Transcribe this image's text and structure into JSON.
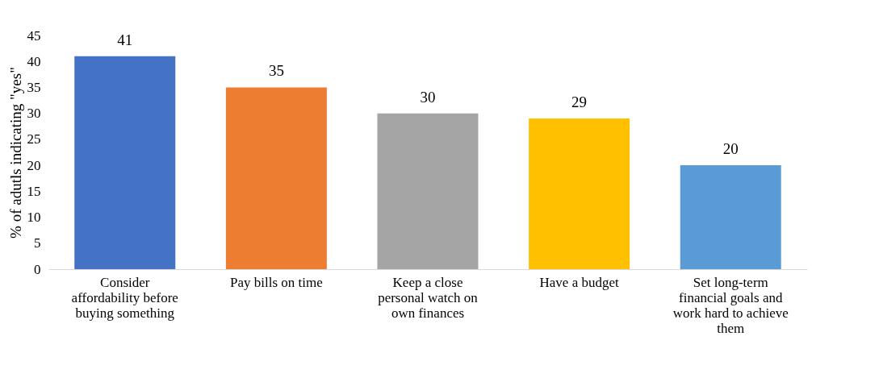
{
  "chart_data": {
    "type": "bar",
    "categories": [
      "Consider affordability before buying something",
      "Pay bills on time",
      "Keep a close personal watch on own finances",
      "Have a budget",
      "Set long-term financial goals and work hard to achieve them"
    ],
    "values": [
      41,
      35,
      30,
      29,
      20
    ],
    "colors": [
      "#4472c4",
      "#ed7d31",
      "#a5a5a5",
      "#ffc000",
      "#5b9bd5"
    ],
    "ylabel": "% of adutls indicating  \"yes\"",
    "ylim": [
      0,
      45
    ],
    "yticks": [
      0,
      5,
      10,
      15,
      20,
      25,
      30,
      35,
      40,
      45
    ],
    "grid": false,
    "data_labels": true
  }
}
